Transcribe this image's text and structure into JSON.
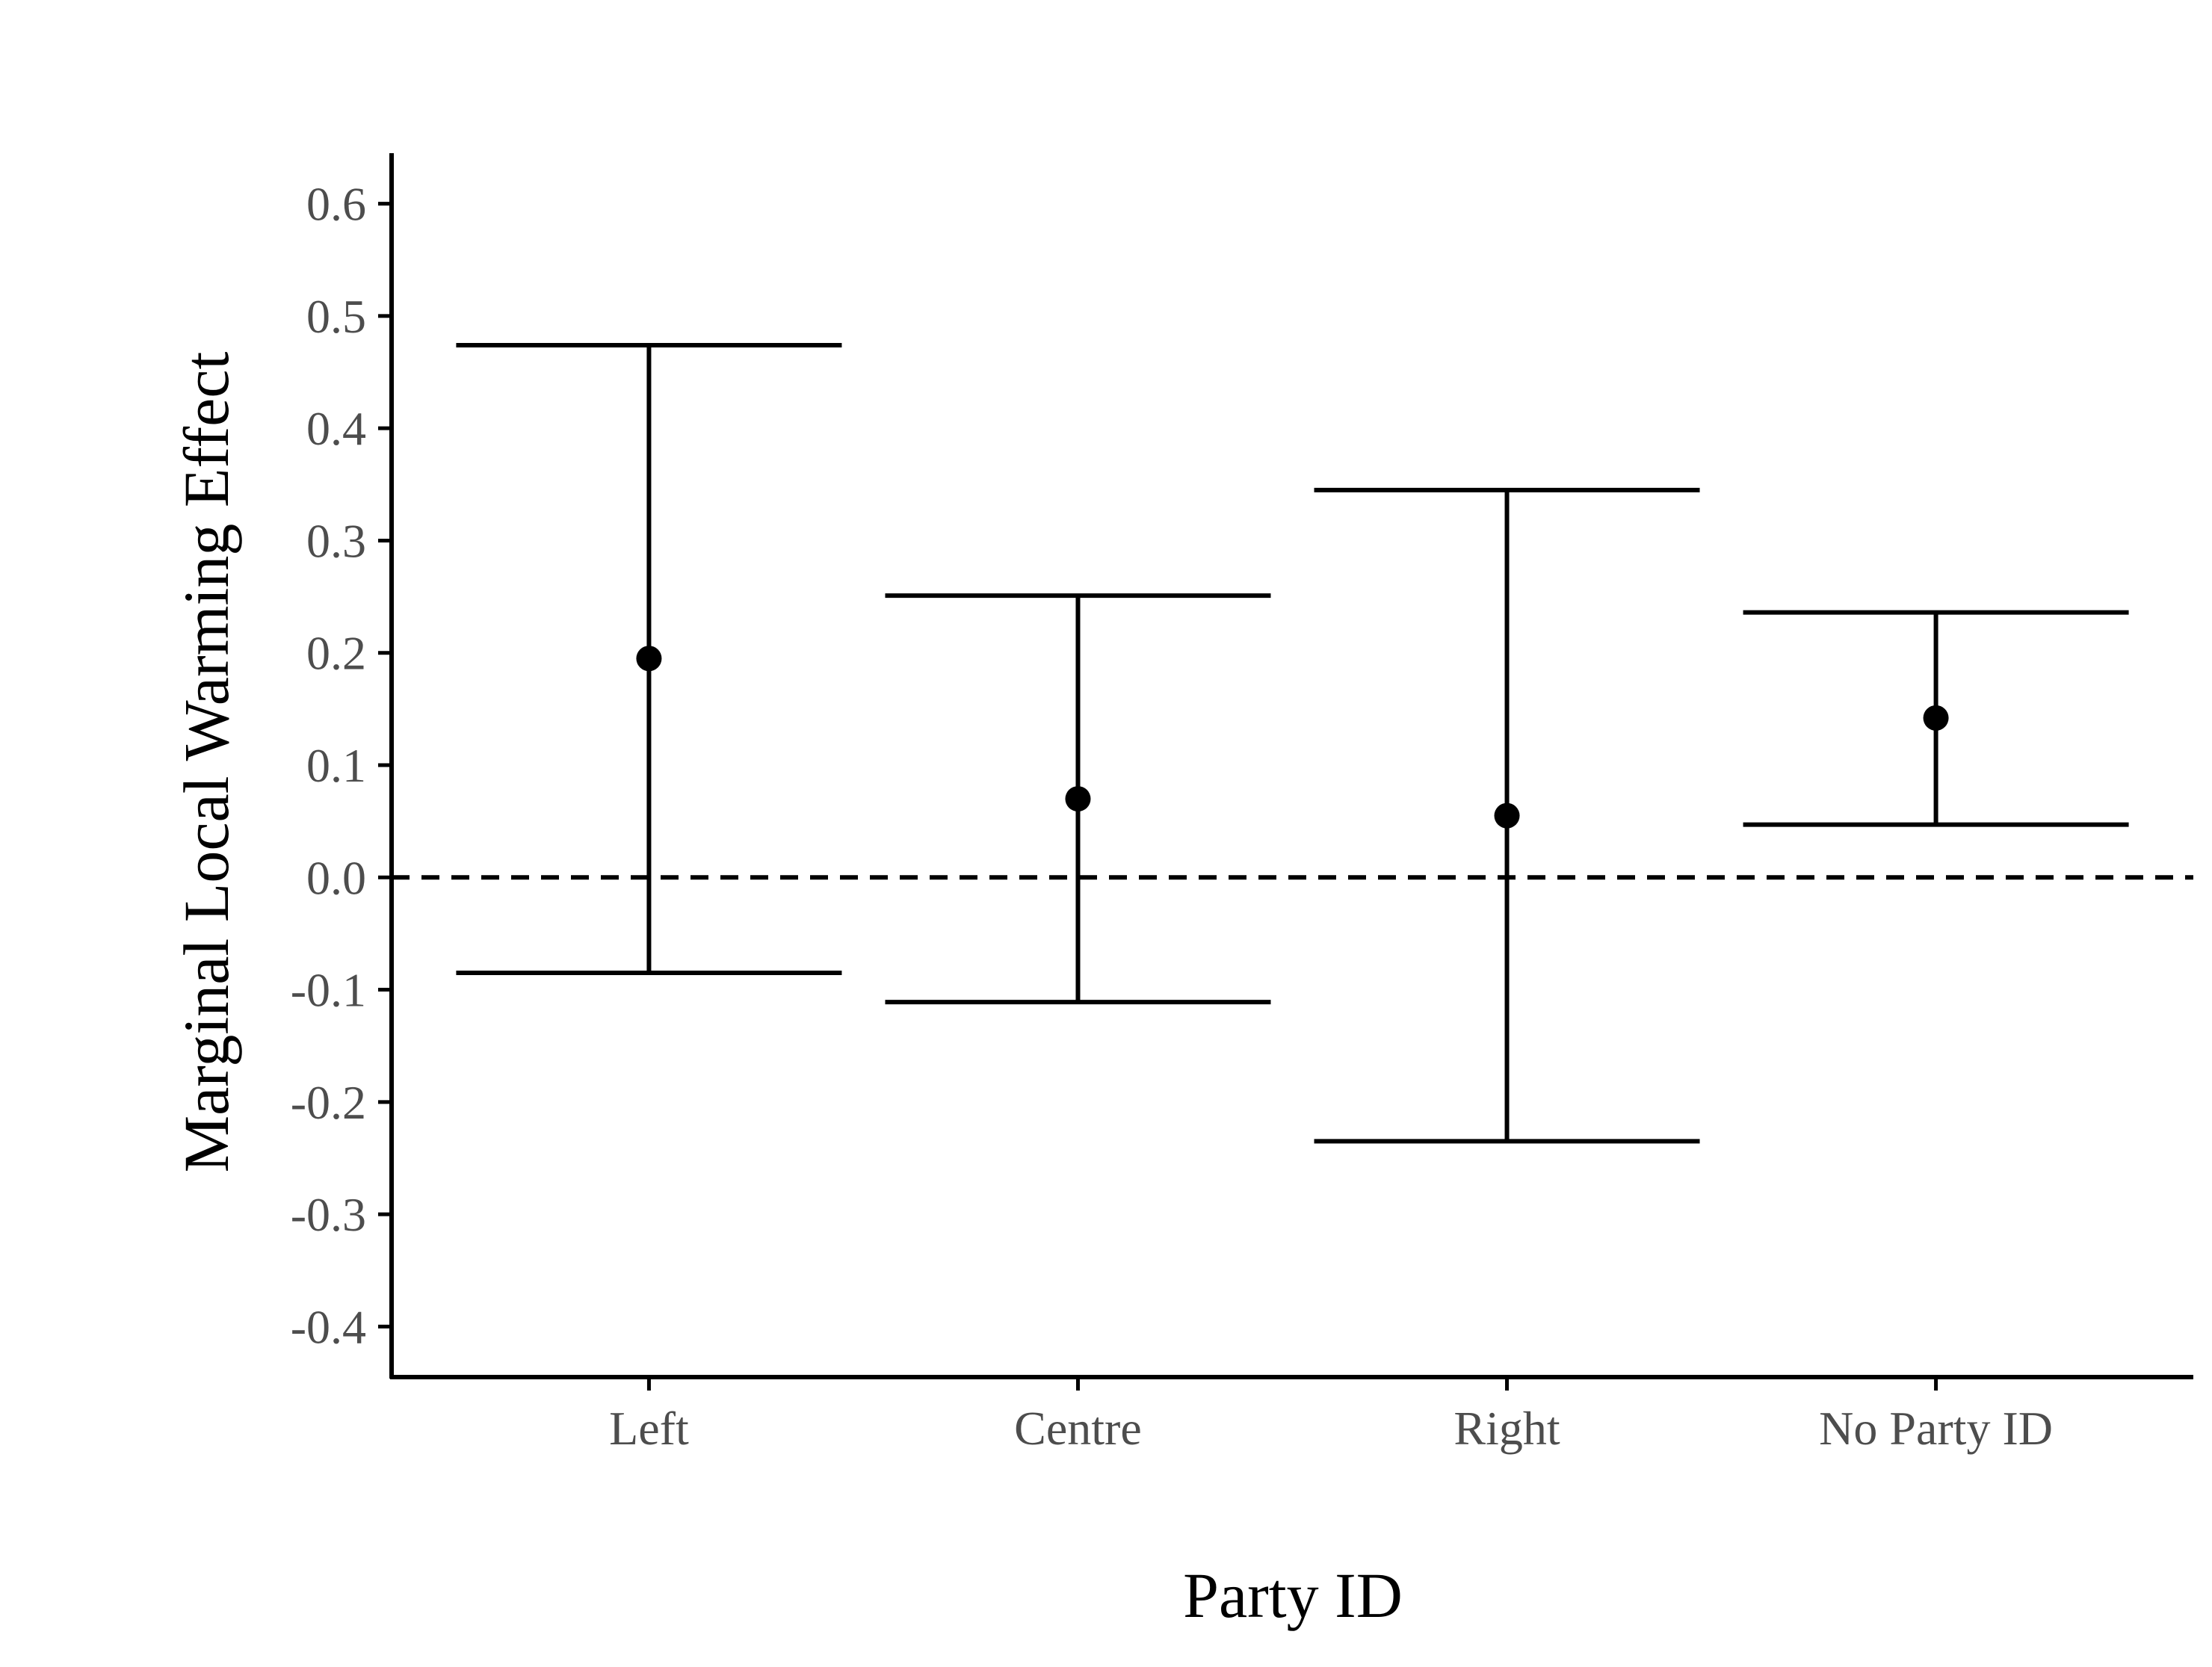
{
  "chart_data": {
    "type": "errorbar",
    "title": "",
    "xlabel": "Party ID",
    "ylabel": "Marginal Local Warming Effect",
    "categories": [
      "Left",
      "Centre",
      "Right",
      "No Party ID"
    ],
    "estimates": [
      0.195,
      0.07,
      0.055,
      0.142
    ],
    "lower": [
      -0.085,
      -0.111,
      -0.235,
      0.047
    ],
    "upper": [
      0.474,
      0.251,
      0.345,
      0.236
    ],
    "ylim": [
      -0.445,
      0.645
    ],
    "yticks": [
      0.6,
      0.5,
      0.4,
      0.3,
      0.2,
      0.1,
      0.0,
      -0.1,
      -0.2,
      -0.3,
      -0.4
    ],
    "ytick_labels": [
      "0.6",
      "0.5",
      "0.4",
      "0.3",
      "0.2",
      "0.1",
      "0.0",
      "-0.1",
      "-0.2",
      "-0.3",
      "-0.4"
    ],
    "reference_line": {
      "y": 0,
      "style": "dashed"
    },
    "grid": false,
    "legend": "none",
    "colors": {
      "marks": "#000000",
      "tick_text": "#4d4d4d"
    }
  }
}
